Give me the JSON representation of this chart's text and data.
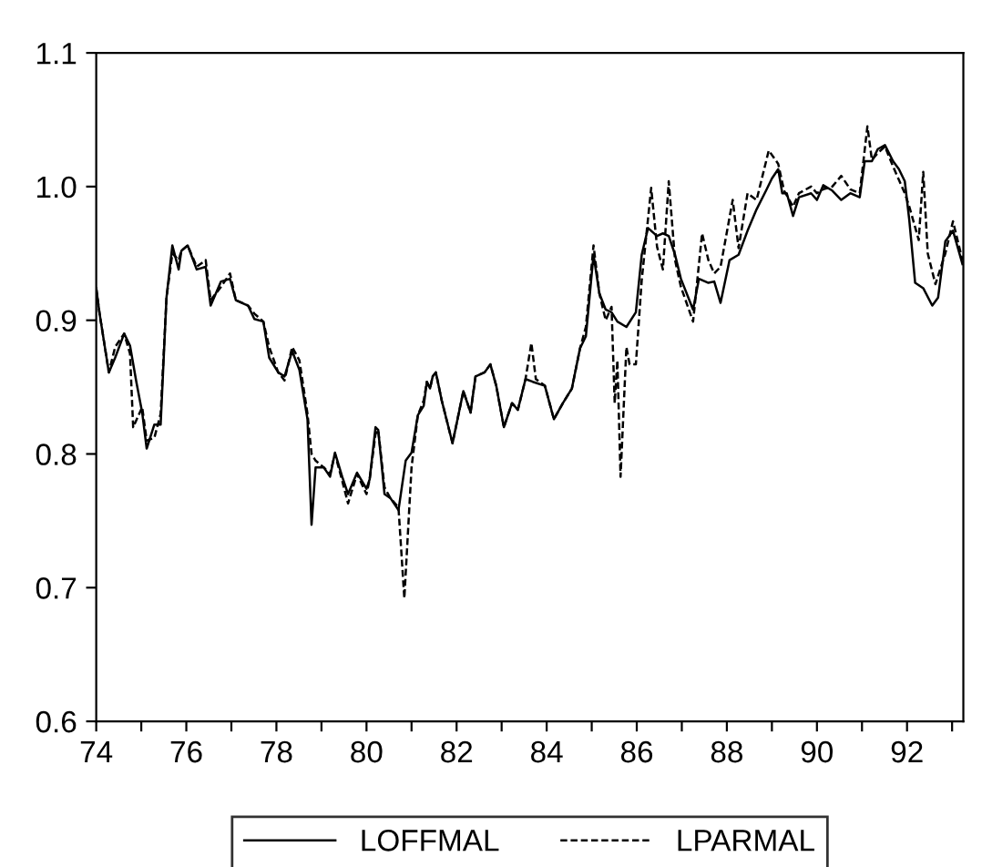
{
  "chart_data": {
    "type": "line",
    "xlim": [
      74,
      93.25
    ],
    "ylim": [
      0.6,
      1.1
    ],
    "xticks": [
      74,
      {
        "value": 75,
        "label": null
      },
      76,
      {
        "value": 77,
        "label": null
      },
      78,
      {
        "value": 79,
        "label": null
      },
      80,
      {
        "value": 81,
        "label": null
      },
      82,
      {
        "value": 83,
        "label": null
      },
      84,
      {
        "value": 85,
        "label": null
      },
      86,
      {
        "value": 87,
        "label": null
      },
      88,
      {
        "value": 89,
        "label": null
      },
      90,
      {
        "value": 91,
        "label": null
      },
      92,
      {
        "value": 93,
        "label": null
      }
    ],
    "yticks": [
      {
        "value": 0.6,
        "label": "0.6"
      },
      {
        "value": 0.7,
        "label": "0.7"
      },
      {
        "value": 0.8,
        "label": "0.8"
      },
      {
        "value": 0.9,
        "label": "0.9"
      },
      {
        "value": 1.0,
        "label": "1.0"
      },
      {
        "value": 1.1,
        "label": "1.1"
      }
    ],
    "grid": false,
    "legend": "bottom",
    "marker": "none",
    "series": [
      {
        "name": "LOFFMAL",
        "color": "#000000",
        "line_style": "solid",
        "x": [
          74.0,
          74.07,
          74.28,
          74.42,
          74.62,
          74.75,
          74.89,
          75.02,
          75.12,
          75.29,
          75.43,
          75.56,
          75.69,
          75.83,
          75.89,
          76.03,
          76.23,
          76.43,
          76.54,
          76.77,
          76.97,
          77.1,
          77.37,
          77.51,
          77.71,
          77.84,
          78.04,
          78.18,
          78.35,
          78.51,
          78.69,
          78.78,
          78.87,
          79.05,
          79.19,
          79.3,
          79.46,
          79.59,
          79.79,
          80.0,
          80.07,
          80.2,
          80.26,
          80.4,
          80.53,
          80.71,
          80.87,
          81.0,
          81.14,
          81.27,
          81.34,
          81.41,
          81.47,
          81.54,
          81.67,
          81.91,
          82.15,
          82.31,
          82.42,
          82.62,
          82.75,
          82.88,
          83.05,
          83.23,
          83.36,
          83.53,
          83.69,
          83.96,
          84.16,
          84.36,
          84.56,
          84.74,
          84.87,
          85.04,
          85.17,
          85.31,
          85.44,
          85.57,
          85.77,
          85.98,
          86.11,
          86.25,
          86.45,
          86.58,
          86.71,
          86.85,
          86.98,
          87.25,
          87.38,
          87.59,
          87.72,
          87.86,
          88.06,
          88.26,
          88.46,
          88.66,
          88.87,
          89.0,
          89.14,
          89.23,
          89.33,
          89.47,
          89.6,
          89.87,
          90.0,
          90.14,
          90.34,
          90.54,
          90.74,
          90.95,
          91.06,
          91.22,
          91.35,
          91.51,
          91.69,
          91.82,
          91.95,
          92.05,
          92.18,
          92.36,
          92.56,
          92.69,
          92.85,
          93.02,
          93.23
        ],
        "values": [
          0.924,
          0.906,
          0.861,
          0.872,
          0.89,
          0.881,
          0.854,
          0.831,
          0.804,
          0.822,
          0.822,
          0.917,
          0.956,
          0.938,
          0.952,
          0.956,
          0.938,
          0.94,
          0.911,
          0.929,
          0.931,
          0.915,
          0.911,
          0.901,
          0.899,
          0.872,
          0.861,
          0.858,
          0.877,
          0.863,
          0.826,
          0.747,
          0.79,
          0.79,
          0.783,
          0.801,
          0.783,
          0.77,
          0.786,
          0.774,
          0.781,
          0.82,
          0.818,
          0.77,
          0.767,
          0.758,
          0.795,
          0.801,
          0.829,
          0.836,
          0.854,
          0.849,
          0.858,
          0.861,
          0.84,
          0.808,
          0.847,
          0.831,
          0.858,
          0.861,
          0.867,
          0.851,
          0.82,
          0.838,
          0.833,
          0.856,
          0.854,
          0.851,
          0.826,
          0.838,
          0.849,
          0.879,
          0.888,
          0.949,
          0.92,
          0.908,
          0.906,
          0.899,
          0.895,
          0.906,
          0.949,
          0.969,
          0.963,
          0.965,
          0.963,
          0.949,
          0.931,
          0.908,
          0.931,
          0.928,
          0.929,
          0.913,
          0.945,
          0.949,
          0.967,
          0.983,
          0.997,
          1.006,
          1.013,
          0.995,
          0.995,
          0.978,
          0.992,
          0.995,
          0.99,
          1.001,
          0.997,
          0.99,
          0.995,
          0.992,
          1.019,
          1.019,
          1.028,
          1.031,
          1.019,
          1.013,
          1.004,
          0.975,
          0.928,
          0.924,
          0.911,
          0.917,
          0.959,
          0.967,
          0.942
        ]
      },
      {
        "name": "LPARMAL",
        "color": "#000000",
        "line_style": "dashed",
        "x": [
          74.0,
          74.07,
          74.28,
          74.42,
          74.62,
          74.75,
          74.82,
          75.02,
          75.12,
          75.29,
          75.43,
          75.56,
          75.69,
          75.83,
          75.89,
          76.03,
          76.23,
          76.43,
          76.54,
          76.77,
          76.97,
          77.1,
          77.37,
          77.51,
          77.71,
          77.84,
          78.04,
          78.18,
          78.35,
          78.51,
          78.69,
          78.78,
          78.87,
          79.05,
          79.19,
          79.3,
          79.46,
          79.59,
          79.79,
          80.0,
          80.07,
          80.2,
          80.26,
          80.4,
          80.53,
          80.71,
          80.84,
          81.0,
          81.14,
          81.27,
          81.34,
          81.41,
          81.47,
          81.54,
          81.67,
          81.91,
          82.15,
          82.31,
          82.42,
          82.62,
          82.75,
          82.88,
          83.05,
          83.23,
          83.36,
          83.53,
          83.66,
          83.76,
          83.96,
          84.16,
          84.36,
          84.56,
          84.74,
          84.87,
          85.04,
          85.17,
          85.31,
          85.44,
          85.51,
          85.57,
          85.64,
          85.77,
          85.84,
          85.98,
          86.11,
          86.32,
          86.45,
          86.58,
          86.71,
          86.85,
          86.98,
          87.25,
          87.45,
          87.59,
          87.72,
          87.86,
          88.13,
          88.26,
          88.46,
          88.66,
          88.93,
          89.14,
          89.27,
          89.47,
          89.6,
          89.87,
          90.0,
          90.14,
          90.34,
          90.54,
          90.74,
          90.95,
          91.12,
          91.22,
          91.35,
          91.51,
          91.69,
          91.82,
          91.95,
          92.05,
          92.16,
          92.26,
          92.36,
          92.46,
          92.63,
          92.85,
          93.02,
          93.23
        ],
        "values": [
          0.924,
          0.906,
          0.861,
          0.88,
          0.89,
          0.875,
          0.82,
          0.835,
          0.81,
          0.812,
          0.83,
          0.917,
          0.95,
          0.945,
          0.952,
          0.956,
          0.94,
          0.945,
          0.915,
          0.925,
          0.935,
          0.915,
          0.911,
          0.905,
          0.899,
          0.88,
          0.861,
          0.855,
          0.88,
          0.87,
          0.83,
          0.8,
          0.795,
          0.79,
          0.785,
          0.8,
          0.78,
          0.763,
          0.785,
          0.77,
          0.781,
          0.815,
          0.818,
          0.775,
          0.767,
          0.76,
          0.692,
          0.79,
          0.829,
          0.84,
          0.854,
          0.849,
          0.858,
          0.861,
          0.84,
          0.808,
          0.847,
          0.831,
          0.858,
          0.861,
          0.867,
          0.851,
          0.82,
          0.838,
          0.833,
          0.856,
          0.883,
          0.856,
          0.851,
          0.826,
          0.838,
          0.849,
          0.879,
          0.895,
          0.956,
          0.92,
          0.9,
          0.91,
          0.838,
          0.87,
          0.783,
          0.88,
          0.867,
          0.867,
          0.93,
          0.999,
          0.955,
          0.938,
          1.004,
          0.945,
          0.925,
          0.899,
          0.965,
          0.945,
          0.935,
          0.94,
          0.99,
          0.954,
          0.995,
          0.99,
          1.027,
          1.017,
          0.997,
          0.985,
          0.995,
          1.0,
          0.995,
          0.998,
          1.0,
          1.008,
          0.998,
          0.995,
          1.045,
          1.02,
          1.025,
          1.03,
          1.015,
          1.005,
          0.995,
          0.985,
          0.972,
          0.96,
          1.011,
          0.95,
          0.927,
          0.95,
          0.974,
          0.945
        ]
      }
    ]
  }
}
